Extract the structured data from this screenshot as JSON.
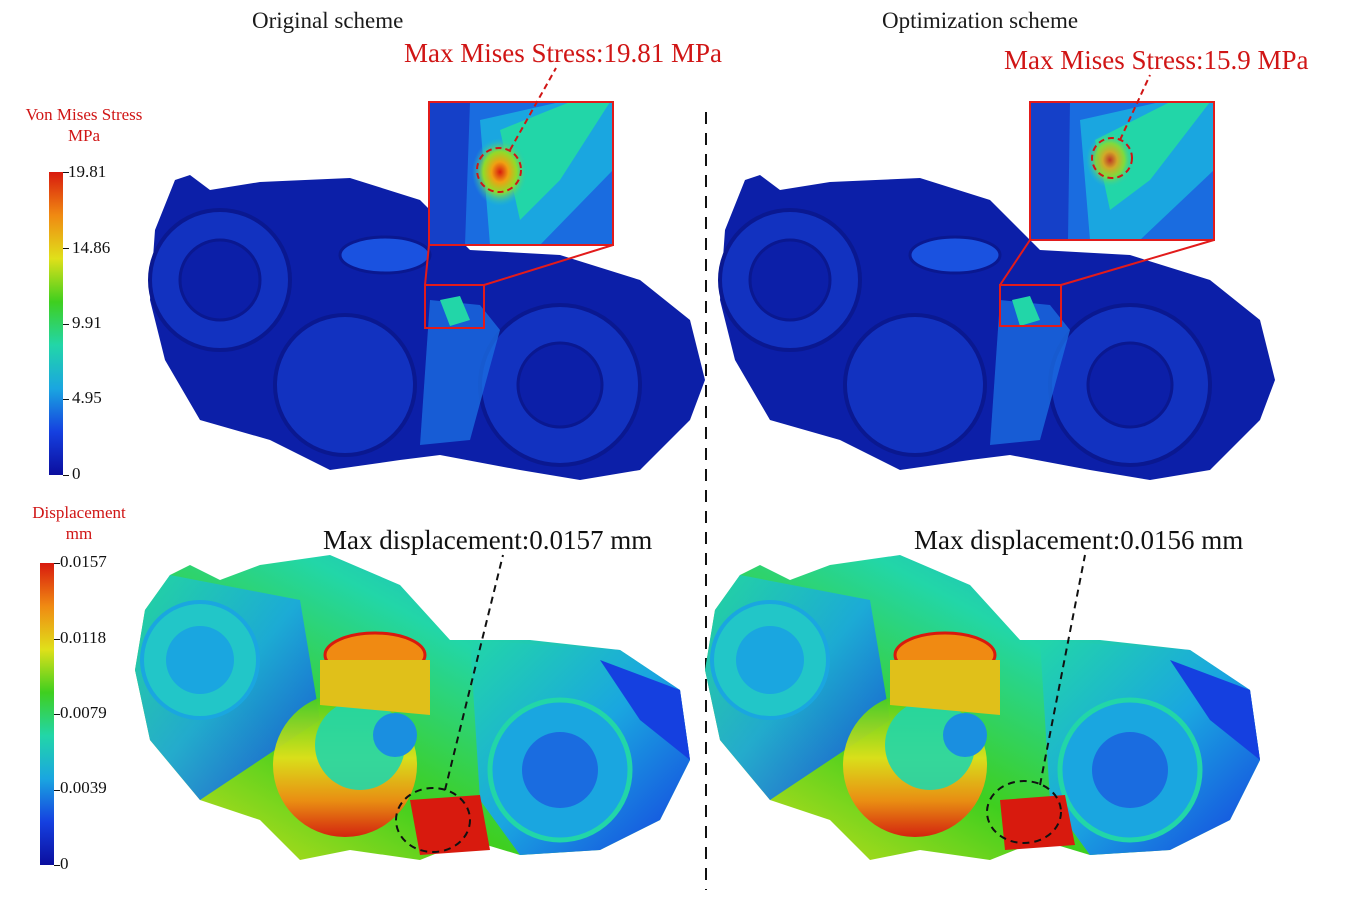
{
  "titles": {
    "left": "Original scheme",
    "right": "Optimization scheme"
  },
  "stress_legend": {
    "title_line1": "Von Mises Stress",
    "title_line2": "MPa",
    "ticks": [
      "19.81",
      "14.86",
      "9.91",
      "4.95",
      "0"
    ],
    "colors": [
      "#d81a0e",
      "#f08a12",
      "#e0e01a",
      "#3fcf1f",
      "#22d6a8",
      "#1aa6e0",
      "#1540e0",
      "#0b0e9e"
    ]
  },
  "displacement_legend": {
    "title_line1": "Displacement",
    "title_line2": "mm",
    "ticks": [
      "0.0157",
      "0.0118",
      "0.0079",
      "0.0039",
      "0"
    ],
    "colors": [
      "#d81a0e",
      "#f08a12",
      "#e0e01a",
      "#3fcf1f",
      "#22d6a8",
      "#1aa6e0",
      "#1540e0",
      "#0b0e9e"
    ]
  },
  "annotations": {
    "left_stress": "Max Mises Stress:19.81 MPa",
    "right_stress": "Max Mises Stress:15.9 MPa",
    "left_displacement": "Max displacement:0.0157 mm",
    "right_displacement": "Max displacement:0.0156 mm"
  },
  "colors": {
    "annotation_red": "#d01515",
    "mesh_dark_blue": "#0c1fa8",
    "mesh_blue": "#1634c8"
  }
}
